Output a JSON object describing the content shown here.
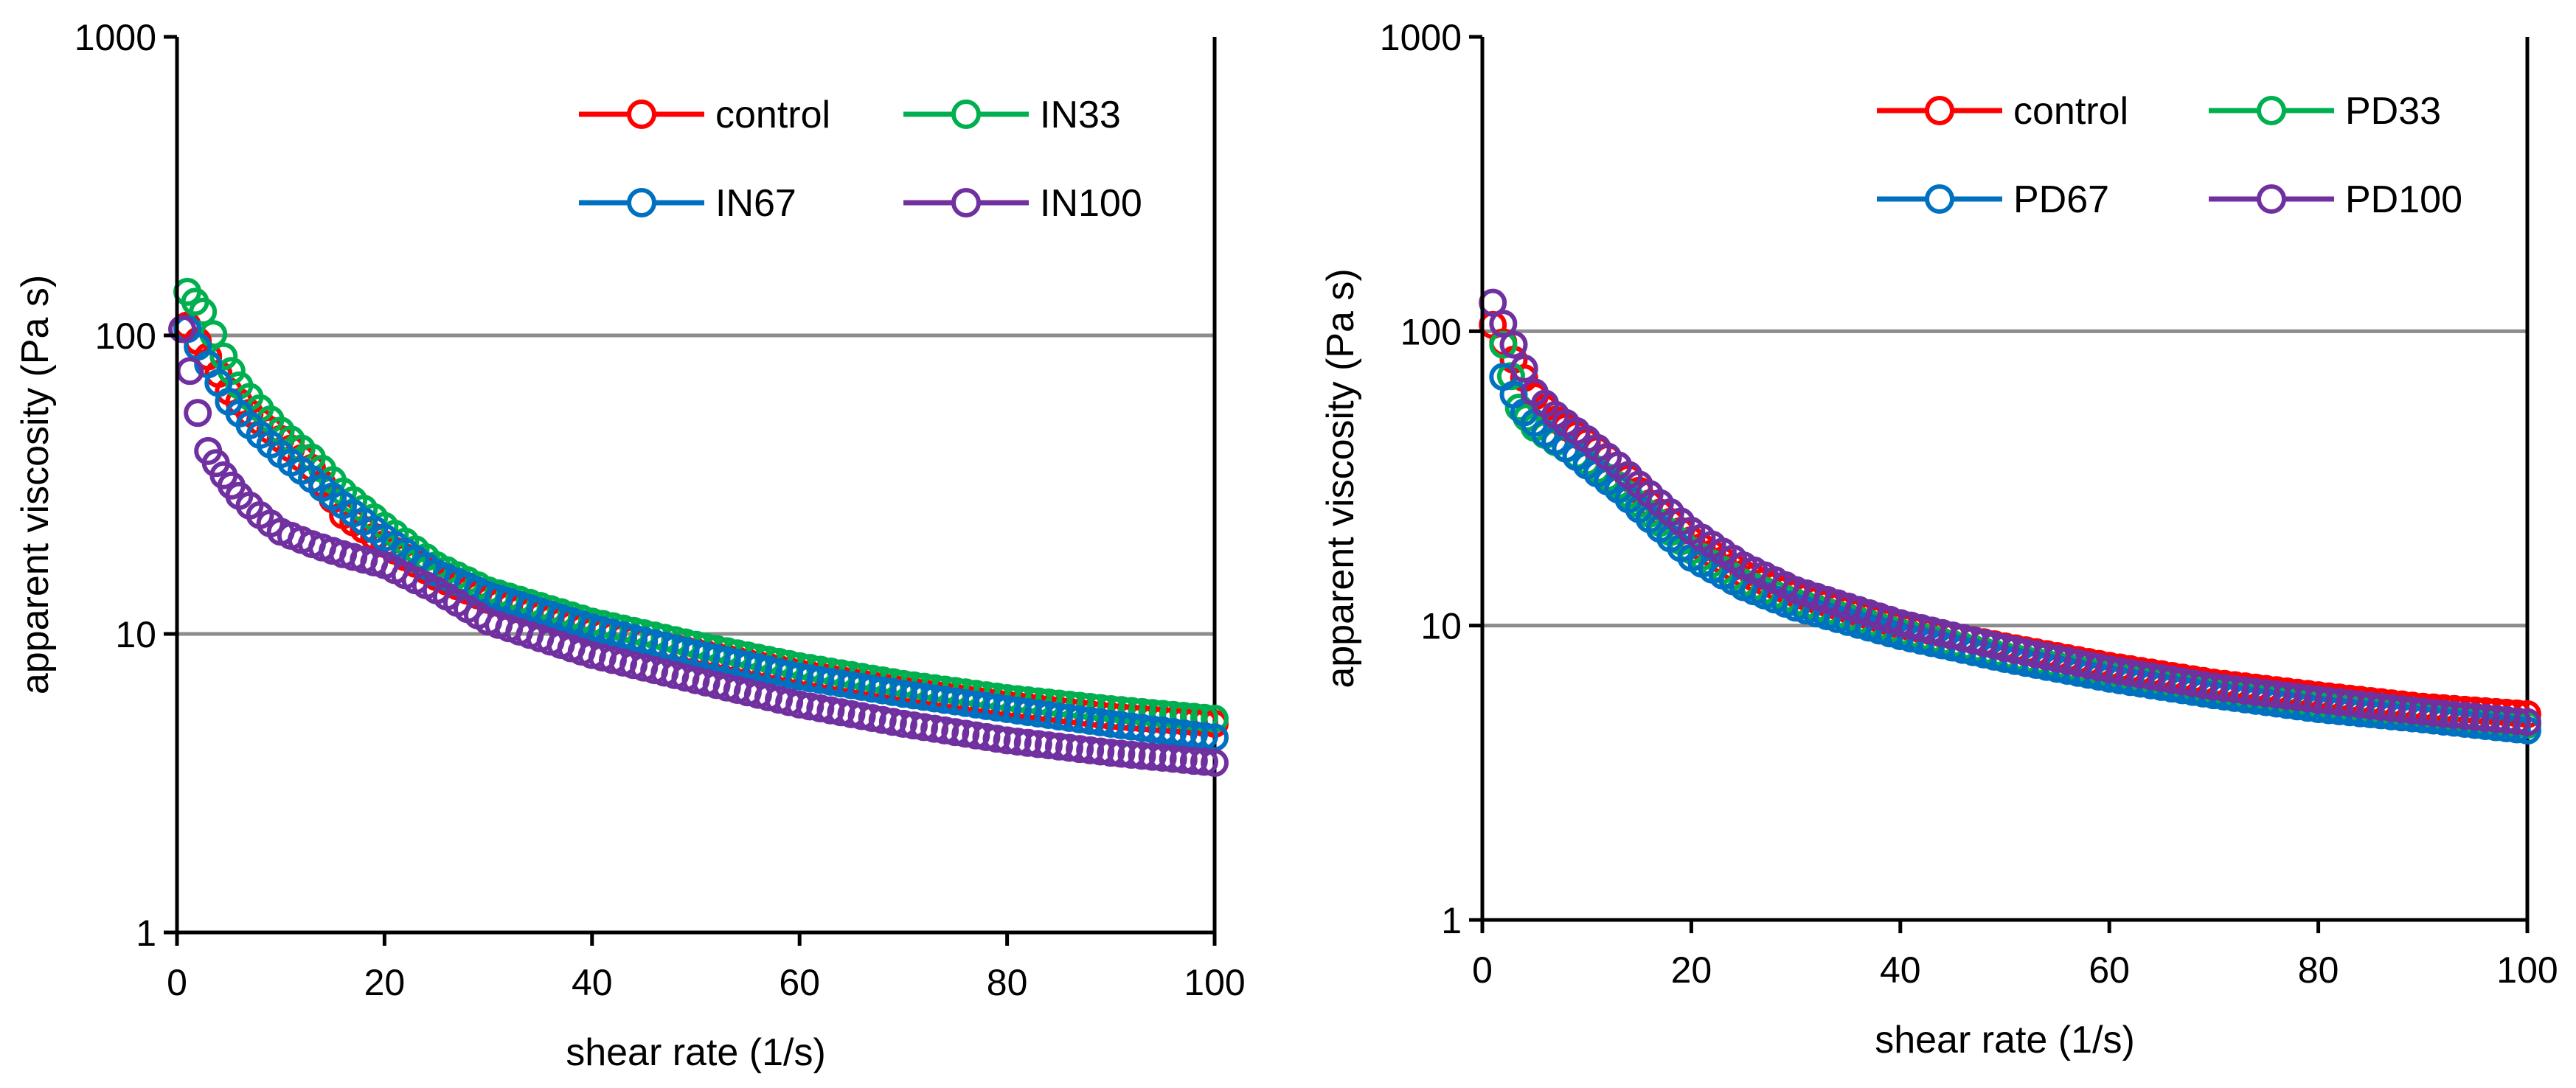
{
  "chart_data": [
    {
      "type": "scatter",
      "xlabel": "shear rate (1/s)",
      "ylabel": "apparent viscosity (Pa s)",
      "xlim": [
        0,
        100
      ],
      "ylim": [
        1,
        1000
      ],
      "yscale": "log",
      "xticks": [
        "0",
        "20",
        "40",
        "60",
        "80",
        "100"
      ],
      "yticks": [
        "1",
        "10",
        "100",
        "1000"
      ],
      "grid": "horizontal major lines at 10 and 100",
      "legend_position": "top-right, two columns",
      "series": [
        {
          "name": "control",
          "color": "#ff0000",
          "points": [
            [
              1,
              108
            ],
            [
              3,
              85
            ],
            [
              5,
              65
            ],
            [
              7,
              55
            ],
            [
              10,
              45
            ],
            [
              13,
              36
            ],
            [
              16,
              25
            ],
            [
              20,
              20
            ],
            [
              25,
              15.5
            ],
            [
              30,
              13
            ],
            [
              40,
              10.2
            ],
            [
              50,
              8.7
            ],
            [
              60,
              7.4
            ],
            [
              70,
              6.5
            ],
            [
              80,
              5.8
            ],
            [
              90,
              5.3
            ],
            [
              100,
              5.0
            ]
          ]
        },
        {
          "name": "IN33",
          "color": "#00b050",
          "points": [
            [
              1,
              140
            ],
            [
              2.5,
              120
            ],
            [
              4.5,
              85
            ],
            [
              6,
              68
            ],
            [
              8,
              57
            ],
            [
              10,
              48
            ],
            [
              13,
              39
            ],
            [
              16,
              30
            ],
            [
              20,
              23
            ],
            [
              25,
              17
            ],
            [
              30,
              14
            ],
            [
              40,
              11
            ],
            [
              50,
              9.2
            ],
            [
              60,
              7.8
            ],
            [
              70,
              6.8
            ],
            [
              80,
              6.1
            ],
            [
              90,
              5.6
            ],
            [
              100,
              5.2
            ]
          ]
        },
        {
          "name": "IN67",
          "color": "#0070c0",
          "points": [
            [
              1,
              105
            ],
            [
              3,
              80
            ],
            [
              5,
              60
            ],
            [
              7,
              50
            ],
            [
              10,
              40
            ],
            [
              13,
              33
            ],
            [
              16,
              27
            ],
            [
              20,
              21
            ],
            [
              25,
              16
            ],
            [
              30,
              13.5
            ],
            [
              40,
              10.5
            ],
            [
              50,
              8.6
            ],
            [
              60,
              7.2
            ],
            [
              70,
              6.3
            ],
            [
              80,
              5.6
            ],
            [
              90,
              5.0
            ],
            [
              100,
              4.5
            ]
          ]
        },
        {
          "name": "IN100",
          "color": "#7030a0",
          "points": [
            [
              0.5,
              105
            ],
            [
              2,
              55
            ],
            [
              3,
              41
            ],
            [
              4.5,
              34
            ],
            [
              6,
              29
            ],
            [
              8,
              25
            ],
            [
              10,
              22
            ],
            [
              13,
              20
            ],
            [
              16,
              18.5
            ],
            [
              20,
              17
            ],
            [
              25,
              14
            ],
            [
              30,
              11
            ],
            [
              40,
              8.5
            ],
            [
              50,
              7
            ],
            [
              60,
              5.8
            ],
            [
              70,
              5
            ],
            [
              80,
              4.4
            ],
            [
              90,
              4
            ],
            [
              100,
              3.7
            ]
          ]
        }
      ]
    },
    {
      "type": "scatter",
      "xlabel": "shear rate (1/s)",
      "ylabel": "apparent viscosity (Pa s)",
      "xlim": [
        0,
        100
      ],
      "ylim": [
        1,
        1000
      ],
      "yscale": "log",
      "xticks": [
        "0",
        "20",
        "40",
        "60",
        "80",
        "100"
      ],
      "yticks": [
        "1",
        "10",
        "100",
        "1000"
      ],
      "grid": "horizontal major lines at 10 and 100",
      "legend_position": "top-right, two columns",
      "series": [
        {
          "name": "control",
          "color": "#ff0000",
          "points": [
            [
              1,
              105
            ],
            [
              3,
              80
            ],
            [
              5,
              60
            ],
            [
              7,
              50
            ],
            [
              10,
              42
            ],
            [
              13,
              35
            ],
            [
              16,
              26
            ],
            [
              20,
              19.5
            ],
            [
              25,
              15
            ],
            [
              30,
              12.8
            ],
            [
              40,
              10
            ],
            [
              50,
              8.5
            ],
            [
              60,
              7.3
            ],
            [
              70,
              6.4
            ],
            [
              80,
              5.8
            ],
            [
              90,
              5.3
            ],
            [
              100,
              5.0
            ]
          ]
        },
        {
          "name": "PD33",
          "color": "#00b050",
          "points": [
            [
              2,
              90
            ],
            [
              3.5,
              55
            ],
            [
              5,
              47
            ],
            [
              7,
              42
            ],
            [
              10,
              36
            ],
            [
              13,
              30
            ],
            [
              16,
              24
            ],
            [
              20,
              18
            ],
            [
              25,
              14
            ],
            [
              30,
              12
            ],
            [
              40,
              9.5
            ],
            [
              50,
              7.9
            ],
            [
              60,
              6.8
            ],
            [
              70,
              6.0
            ],
            [
              80,
              5.4
            ],
            [
              90,
              4.9
            ],
            [
              100,
              4.6
            ]
          ]
        },
        {
          "name": "PD67",
          "color": "#0070c0",
          "points": [
            [
              2,
              70
            ],
            [
              4,
              53
            ],
            [
              6,
              45
            ],
            [
              8,
              40
            ],
            [
              10,
              35
            ],
            [
              13,
              29
            ],
            [
              16,
              23
            ],
            [
              20,
              17
            ],
            [
              25,
              13.5
            ],
            [
              30,
              11.5
            ],
            [
              40,
              9.2
            ],
            [
              50,
              7.7
            ],
            [
              60,
              6.6
            ],
            [
              70,
              5.8
            ],
            [
              80,
              5.2
            ],
            [
              90,
              4.8
            ],
            [
              100,
              4.4
            ]
          ]
        },
        {
          "name": "PD100",
          "color": "#7030a0",
          "points": [
            [
              1,
              125
            ],
            [
              3,
              90
            ],
            [
              5,
              62
            ],
            [
              7,
              52
            ],
            [
              10,
              43
            ],
            [
              13,
              35
            ],
            [
              16,
              28
            ],
            [
              20,
              21
            ],
            [
              25,
              16
            ],
            [
              30,
              13.2
            ],
            [
              40,
              10.2
            ],
            [
              50,
              8.4
            ],
            [
              60,
              7.1
            ],
            [
              70,
              6.2
            ],
            [
              80,
              5.6
            ],
            [
              90,
              5.1
            ],
            [
              100,
              4.7
            ]
          ]
        }
      ]
    }
  ]
}
